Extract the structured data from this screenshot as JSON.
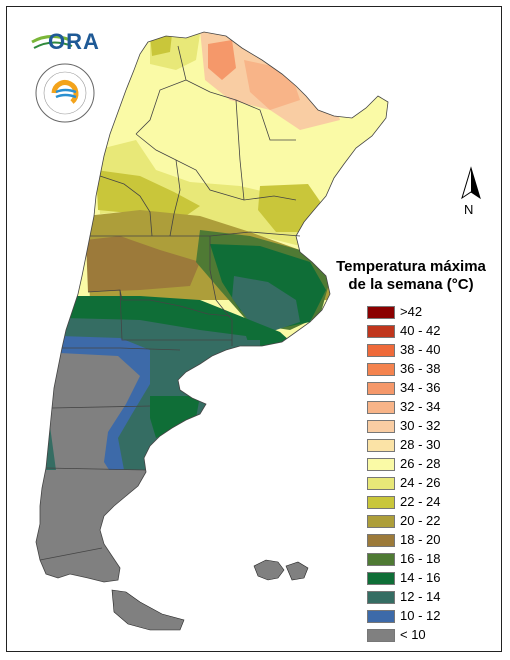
{
  "header": {
    "ora_logo_text": "ORA",
    "smn_logo_text": "INSTITUTO METEOROLÓGICO NACIONAL ARGENTINA",
    "smn_logo_subtext": "ARGENTINA"
  },
  "north_arrow": {
    "label": "N"
  },
  "legend": {
    "title_line1": "Temperatura máxima",
    "title_line2": "de la semana (°C)",
    "classes": [
      {
        "label": ">42",
        "color": "#8b0000"
      },
      {
        "label": "40 - 42",
        "color": "#c0361d"
      },
      {
        "label": "38 - 40",
        "color": "#ef6a3a"
      },
      {
        "label": "36 - 38",
        "color": "#f4834f"
      },
      {
        "label": "34 - 36",
        "color": "#f5986a"
      },
      {
        "label": "32 - 34",
        "color": "#f8b488"
      },
      {
        "label": "30 - 32",
        "color": "#f9cda3"
      },
      {
        "label": "28 - 30",
        "color": "#fbe3a6"
      },
      {
        "label": "26 - 28",
        "color": "#fafaa6"
      },
      {
        "label": "24 - 26",
        "color": "#e8e878"
      },
      {
        "label": "22 - 24",
        "color": "#c9c63a"
      },
      {
        "label": "20 - 22",
        "color": "#ad9e3a"
      },
      {
        "label": "18 - 20",
        "color": "#9c7a3a"
      },
      {
        "label": "16 - 18",
        "color": "#4f7a34"
      },
      {
        "label": "14 - 16",
        "color": "#0f6e37"
      },
      {
        "label": "12 - 14",
        "color": "#356d63"
      },
      {
        "label": "10 - 12",
        "color": "#3d6aa9"
      },
      {
        "label": "< 10",
        "color": "#808080"
      }
    ]
  }
}
